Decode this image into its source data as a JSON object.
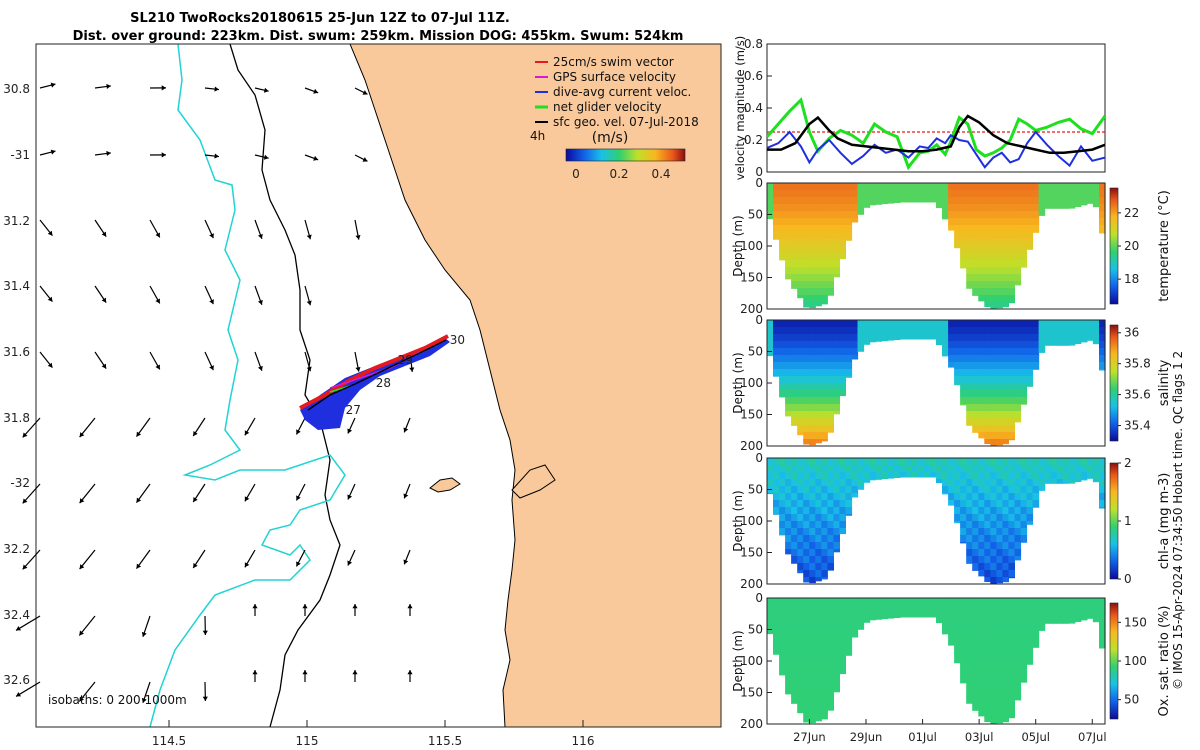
{
  "header": {
    "line1": "SL210 TwoRocks20180615 25-Jun 12Z to 07-Jul 11Z.",
    "line2": "Dist. over ground: 223km. Dist. swum: 259km. Mission DOG: 455km. Swum: 524km"
  },
  "colors": {
    "land": "#f9c99b",
    "isobath200": "#000000",
    "isobath1000": "#22d3d3",
    "swim": "#e41a1c",
    "gps": "#d619d6",
    "dive": "#1f2fe0",
    "net": "#1fe01f",
    "sfc": "#000000"
  },
  "chart_data": [
    {
      "id": "map",
      "type": "scatter",
      "title": "glider track map",
      "xlabel": "",
      "ylabel": "",
      "xlim": [
        114.0,
        116.5
      ],
      "ylim": [
        -32.75,
        -30.7
      ],
      "x_ticks": [
        114.5,
        115,
        115.5,
        116
      ],
      "x_tick_labels": [
        "114.5",
        "115",
        "115.5",
        "116"
      ],
      "y_ticks": [
        -30.8,
        -31.0,
        -31.2,
        -31.4,
        -31.6,
        -31.8,
        -32.0,
        -32.2,
        -32.4,
        -32.6
      ],
      "y_tick_labels": [
        "30.8",
        "-31",
        "31.2",
        "31.4",
        "31.6",
        "31.8",
        "-32",
        "32.2",
        "32.4",
        "32.6"
      ],
      "legend": {
        "position": "top-right",
        "entries": [
          {
            "label": "25cm/s swim vector",
            "color": "#e41a1c"
          },
          {
            "label": "GPS surface velocity",
            "color": "#d619d6"
          },
          {
            "label": "dive-avg current veloc.",
            "color": "#1f2fe0"
          },
          {
            "label": "net glider velocity",
            "color": "#1fe01f"
          },
          {
            "label": "sfc geo. vel. 07-Jul-2018",
            "color": "#000000"
          }
        ],
        "scale_label": "4h"
      },
      "colorbar": {
        "label": "(m/s)",
        "ticks": [
          0,
          0.2,
          0.4
        ],
        "tick_labels": [
          "0",
          "0.2",
          "0.4"
        ],
        "range": [
          0,
          0.5
        ]
      },
      "track": {
        "lon": [
          115.0,
          115.05,
          115.1,
          115.15,
          115.22,
          115.3,
          115.38,
          115.45,
          115.5
        ],
        "lat": [
          -31.78,
          -31.76,
          -31.72,
          -31.69,
          -31.67,
          -31.65,
          -31.62,
          -31.58,
          -31.56
        ],
        "day_labels": [
          "27",
          "28",
          "29",
          "30"
        ],
        "day_lon": [
          115.13,
          115.24,
          115.32,
          115.51
        ],
        "day_lat": [
          -31.81,
          -31.73,
          -31.66,
          -31.6
        ]
      },
      "isobaths_note": "isobaths: 0  200  1000m"
    },
    {
      "id": "velocity",
      "type": "line",
      "title": "",
      "xlabel": "",
      "ylabel": "velocity magnitude (m/s)",
      "ylim": [
        0,
        0.8
      ],
      "y_ticks": [
        0,
        0.2,
        0.4,
        0.6,
        0.8
      ],
      "y_tick_labels": [
        "0",
        "0.2",
        "0.4",
        "0.6",
        "0.8"
      ],
      "xlim": [
        25.5,
        37.45
      ],
      "series": [
        {
          "name": "swim vector",
          "color": "#e41a1c",
          "x": [
            25.5,
            37.45
          ],
          "values": [
            0.25,
            0.25
          ]
        },
        {
          "name": "net glider velocity",
          "color": "#1fe01f",
          "x": [
            25.5,
            25.9,
            26.3,
            26.7,
            27.0,
            27.3,
            27.7,
            28.1,
            28.5,
            28.9,
            29.3,
            29.7,
            30.1,
            30.5,
            30.9,
            31.2,
            31.5,
            31.8,
            32.0,
            32.3,
            32.6,
            32.9,
            33.2,
            33.5,
            33.8,
            34.1,
            34.4,
            34.7,
            35.0,
            35.4,
            35.8,
            36.2,
            36.6,
            37.0,
            37.45
          ],
          "values": [
            0.22,
            0.3,
            0.38,
            0.45,
            0.25,
            0.13,
            0.21,
            0.26,
            0.23,
            0.18,
            0.3,
            0.25,
            0.22,
            0.03,
            0.12,
            0.13,
            0.17,
            0.11,
            0.19,
            0.34,
            0.3,
            0.14,
            0.1,
            0.12,
            0.15,
            0.2,
            0.33,
            0.3,
            0.26,
            0.28,
            0.31,
            0.33,
            0.27,
            0.24,
            0.35
          ]
        },
        {
          "name": "dive-avg current veloc.",
          "color": "#1f2fe0",
          "x": [
            25.5,
            25.9,
            26.3,
            26.7,
            27.0,
            27.3,
            27.7,
            28.1,
            28.5,
            28.9,
            29.3,
            29.7,
            30.1,
            30.5,
            30.9,
            31.2,
            31.5,
            31.8,
            32.0,
            32.3,
            32.6,
            32.9,
            33.2,
            33.5,
            33.8,
            34.1,
            34.4,
            34.7,
            35.0,
            35.4,
            35.8,
            36.2,
            36.6,
            37.0,
            37.45
          ],
          "values": [
            0.15,
            0.18,
            0.25,
            0.16,
            0.06,
            0.14,
            0.2,
            0.12,
            0.05,
            0.1,
            0.17,
            0.12,
            0.14,
            0.09,
            0.16,
            0.15,
            0.21,
            0.18,
            0.23,
            0.2,
            0.19,
            0.11,
            0.03,
            0.09,
            0.12,
            0.06,
            0.08,
            0.18,
            0.25,
            0.17,
            0.1,
            0.04,
            0.16,
            0.07,
            0.09
          ]
        },
        {
          "name": "sfc geo. vel.",
          "color": "#000000",
          "x": [
            25.5,
            26.0,
            26.5,
            27.0,
            27.3,
            27.7,
            28.0,
            28.5,
            29.0,
            29.5,
            30.0,
            30.5,
            31.0,
            31.5,
            32.0,
            32.3,
            32.6,
            33.0,
            33.5,
            34.0,
            34.5,
            35.0,
            35.5,
            36.0,
            36.5,
            37.0,
            37.45
          ],
          "values": [
            0.14,
            0.14,
            0.18,
            0.3,
            0.34,
            0.26,
            0.21,
            0.17,
            0.16,
            0.15,
            0.14,
            0.13,
            0.13,
            0.14,
            0.16,
            0.28,
            0.35,
            0.31,
            0.23,
            0.18,
            0.16,
            0.14,
            0.12,
            0.12,
            0.13,
            0.14,
            0.17
          ]
        }
      ]
    },
    {
      "id": "temperature",
      "type": "heatmap",
      "ylabel": "Depth (m)",
      "ylim": [
        200,
        0
      ],
      "y_ticks": [
        0,
        50,
        100,
        150,
        200
      ],
      "y_tick_labels": [
        "0",
        "50",
        "100",
        "150",
        "200"
      ],
      "colorbar": {
        "label": "temperature (°C)",
        "ticks": [
          18,
          20,
          22
        ],
        "tick_labels": [
          "18",
          "20",
          "22"
        ],
        "range": [
          16.5,
          23.5
        ]
      },
      "surface_value": 22.5,
      "deep_value": 19.3
    },
    {
      "id": "salinity",
      "type": "heatmap",
      "ylabel": "Depth (m)",
      "ylim": [
        200,
        0
      ],
      "y_ticks": [
        0,
        50,
        100,
        150,
        200
      ],
      "y_tick_labels": [
        "0",
        "50",
        "100",
        "150",
        "200"
      ],
      "colorbar": {
        "label": "salinity",
        "ticks": [
          35.4,
          35.6,
          35.8,
          36
        ],
        "tick_labels": [
          "35.4",
          "35.6",
          "35.8",
          "36"
        ],
        "range": [
          35.3,
          36.05
        ]
      },
      "surface_value": 35.33,
      "deep_value": 35.95
    },
    {
      "id": "chla",
      "type": "heatmap",
      "ylabel": "Depth (m)",
      "ylim": [
        200,
        0
      ],
      "y_ticks": [
        0,
        50,
        100,
        150,
        200
      ],
      "y_tick_labels": [
        "0",
        "50",
        "100",
        "150",
        "200"
      ],
      "colorbar": {
        "label": "chl-a (mg m-3)",
        "ticks": [
          0,
          1,
          2
        ],
        "tick_labels": [
          "0",
          "1",
          "2"
        ],
        "range": [
          0,
          2
        ]
      },
      "surface_value": 0.65,
      "deep_value": 0.15
    },
    {
      "id": "oxygen",
      "type": "heatmap",
      "ylabel": "Depth (m)",
      "ylim": [
        200,
        0
      ],
      "y_ticks": [
        0,
        50,
        100,
        150,
        200
      ],
      "y_tick_labels": [
        "0",
        "50",
        "100",
        "150",
        "200"
      ],
      "x_ticks": [
        27,
        29,
        31,
        33,
        35,
        37
      ],
      "x_tick_labels": [
        "27Jun",
        "29Jun",
        "01Jul",
        "03Jul",
        "05Jul",
        "07Jul"
      ],
      "colorbar": {
        "label": "Ox. sat. ratio (%)",
        "ticks": [
          50,
          100,
          150
        ],
        "tick_labels": [
          "50",
          "100",
          "150"
        ],
        "range": [
          25,
          175
        ]
      },
      "surface_value": 90,
      "deep_value": 92
    }
  ],
  "footer": {
    "credit": "© IMOS 15-Apr-2024 07:34:50 Hobart time. QC flags 1  2"
  }
}
